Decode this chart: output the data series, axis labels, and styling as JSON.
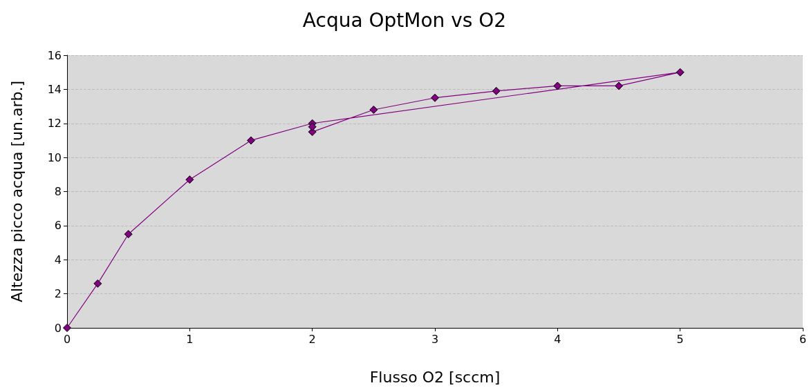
{
  "chart_data": {
    "type": "line",
    "title": "Acqua OptMon vs O2",
    "xlabel": "Flusso O2 [sccm]",
    "ylabel": "Altezza picco acqua [un.arb.]",
    "series": [
      {
        "color": "#800080",
        "x": [
          0,
          0.25,
          0.5,
          1,
          1.5,
          2,
          5,
          4.5,
          4,
          3.5,
          3,
          2.5,
          2,
          2
        ],
        "values": [
          0,
          2.6,
          5.5,
          8.7,
          11,
          12,
          15,
          14.2,
          14.2,
          13.9,
          13.5,
          12.8,
          11.5,
          11.8
        ]
      }
    ],
    "xlim": [
      0,
      6
    ],
    "xticks": [
      0,
      1,
      2,
      3,
      4,
      5,
      6
    ],
    "ylim": [
      0,
      16
    ],
    "yticks": [
      0,
      2,
      4,
      6,
      8,
      10,
      12,
      14,
      16
    ],
    "grid": "y",
    "marker": "diamond",
    "line_style": "solid"
  }
}
